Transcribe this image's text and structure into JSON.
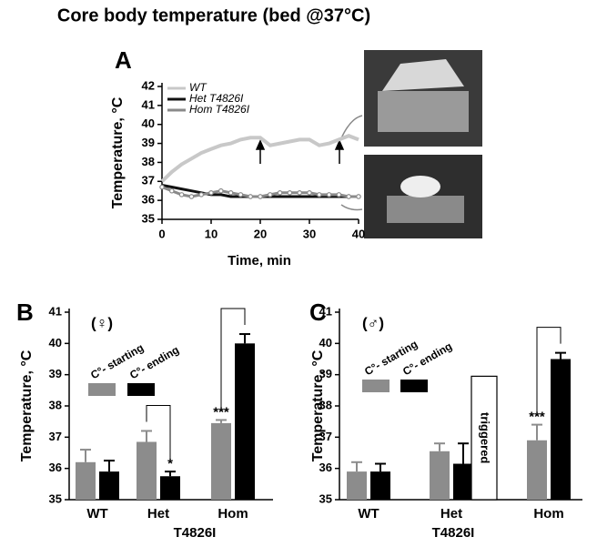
{
  "title": "Core body temperature (bed @37°C)",
  "chart_data": [
    {
      "type": "line",
      "panel": "A",
      "y_label": "Temperature, °C",
      "x_label": "Time, min",
      "x": [
        0,
        2,
        4,
        6,
        8,
        10,
        12,
        14,
        16,
        18,
        20,
        22,
        24,
        26,
        28,
        30,
        32,
        34,
        36,
        38,
        40
      ],
      "xlim": [
        0,
        40
      ],
      "xticks": [
        0,
        10,
        20,
        30,
        40
      ],
      "ylim": [
        35,
        42
      ],
      "yticks": [
        35,
        36,
        37,
        38,
        39,
        40,
        41,
        42
      ],
      "series": [
        {
          "name": "WT",
          "color": "#c8c8c8",
          "values": [
            37.0,
            37.5,
            37.9,
            38.2,
            38.5,
            38.7,
            38.9,
            39.0,
            39.2,
            39.3,
            39.3,
            38.9,
            39.0,
            39.1,
            39.2,
            39.2,
            38.9,
            39.0,
            39.2,
            39.4,
            39.2
          ]
        },
        {
          "name": "Het T4826I",
          "color": "#111111",
          "values": [
            36.8,
            36.7,
            36.6,
            36.5,
            36.4,
            36.3,
            36.3,
            36.2,
            36.2,
            36.2,
            36.2,
            36.2,
            36.2,
            36.2,
            36.2,
            36.2,
            36.2,
            36.2,
            36.2,
            36.2,
            36.2
          ]
        },
        {
          "name": "Hom T4826I",
          "color": "#8a8a8a",
          "values": [
            36.7,
            36.5,
            36.3,
            36.2,
            36.3,
            36.4,
            36.5,
            36.4,
            36.3,
            36.2,
            36.2,
            36.3,
            36.4,
            36.4,
            36.4,
            36.4,
            36.3,
            36.3,
            36.3,
            36.2,
            36.2
          ]
        }
      ]
    },
    {
      "type": "bar",
      "panel": "B",
      "group": "(♀)",
      "y_label": "Temperature, °C",
      "x_label": "T4826I",
      "categories": [
        "WT",
        "Het",
        "Hom"
      ],
      "ylim": [
        35,
        41
      ],
      "yticks": [
        35,
        36,
        37,
        38,
        39,
        40,
        41
      ],
      "brackets": [
        "Het",
        "Hom"
      ],
      "series": [
        {
          "name": "C°- starting",
          "color": "#8c8c8c",
          "values": [
            36.2,
            36.85,
            37.45
          ],
          "errors": [
            0.4,
            0.35,
            0.1
          ],
          "significance": [
            null,
            null,
            "***"
          ]
        },
        {
          "name": "C°- ending",
          "color": "#000000",
          "values": [
            35.9,
            35.75,
            40.0
          ],
          "errors": [
            0.35,
            0.15,
            0.3
          ],
          "significance": [
            null,
            "*",
            null
          ]
        }
      ]
    },
    {
      "type": "bar",
      "panel": "C",
      "group": "(♂)",
      "y_label": "Temperature, °C",
      "x_label": "T4826I",
      "categories": [
        "WT",
        "Het",
        "Hom"
      ],
      "ylim": [
        35,
        41
      ],
      "yticks": [
        35,
        36,
        37,
        38,
        39,
        40,
        41
      ],
      "brackets": [
        "Hom"
      ],
      "annotations": [
        {
          "text": "triggered",
          "value": 38.95
        }
      ],
      "series": [
        {
          "name": "C°- starting",
          "color": "#8c8c8c",
          "values": [
            35.9,
            36.55,
            36.9
          ],
          "errors": [
            0.3,
            0.25,
            0.5
          ],
          "significance": [
            null,
            null,
            "***"
          ]
        },
        {
          "name": "C°- ending",
          "color": "#000000",
          "values": [
            35.9,
            36.15,
            39.5
          ],
          "errors": [
            0.25,
            0.65,
            0.2
          ],
          "significance": [
            null,
            null,
            null
          ]
        }
      ]
    }
  ]
}
